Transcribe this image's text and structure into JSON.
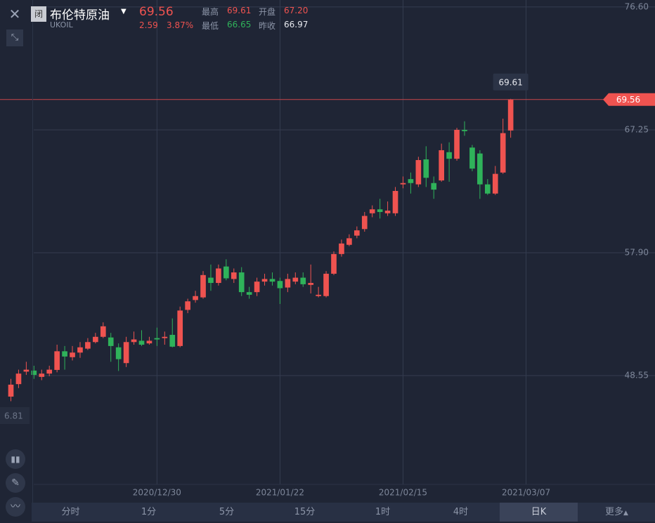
{
  "header": {
    "badge": "闭",
    "name": "布伦特原油",
    "symbol": "UKOIL",
    "price": "69.56",
    "change": "2.59",
    "change_pct": "3.87%",
    "high_label": "最高",
    "high": "69.61",
    "open_label": "开盘",
    "open": "67.20",
    "low_label": "最低",
    "low": "66.65",
    "prev_label": "昨收",
    "prev": "66.97"
  },
  "chart_data": {
    "type": "candlestick",
    "up_color": "#ef5350",
    "down_color": "#2fb25a",
    "grid": true,
    "open": [
      46.95,
      47.9,
      48.85,
      48.93,
      48.45,
      48.7,
      48.98,
      50.4,
      49.95,
      50.3,
      50.6,
      51.1,
      51.5,
      51.45,
      50.7,
      49.5,
      51.1,
      51.2,
      51.0,
      51.4,
      51.4,
      51.65,
      50.8,
      53.55,
      54.3,
      54.5,
      56.0,
      55.6,
      56.85,
      55.9,
      56.4,
      54.9,
      54.9,
      55.7,
      55.9,
      55.75,
      55.25,
      55.7,
      56.0,
      55.45,
      54.6,
      54.6,
      56.3,
      57.8,
      58.5,
      59.2,
      59.7,
      60.9,
      61.2,
      60.9,
      60.9,
      63.1,
      63.5,
      63.1,
      65.0,
      63.2,
      63.4,
      65.55,
      65.05,
      67.25,
      65.9,
      65.45,
      63.1,
      62.4,
      64.0,
      67.2
    ],
    "high": [
      48.3,
      49.0,
      49.6,
      49.3,
      49.0,
      49.3,
      50.9,
      50.8,
      50.8,
      51.1,
      51.4,
      51.8,
      52.6,
      51.8,
      51.0,
      51.5,
      51.9,
      52.0,
      51.5,
      52.2,
      51.9,
      52.9,
      53.8,
      54.4,
      55.0,
      56.5,
      57.0,
      57.0,
      57.4,
      56.7,
      56.8,
      55.3,
      56.0,
      56.3,
      56.4,
      56.0,
      56.3,
      56.4,
      56.4,
      57.0,
      55.3,
      56.5,
      58.0,
      58.9,
      59.3,
      59.9,
      61.0,
      61.5,
      62.0,
      61.8,
      62.9,
      63.7,
      64.0,
      65.2,
      66.0,
      63.7,
      66.2,
      66.3,
      67.4,
      67.9,
      66.1,
      65.7,
      63.5,
      64.5,
      68.1,
      69.61
    ],
    "low": [
      46.6,
      47.6,
      48.6,
      48.3,
      48.2,
      48.5,
      48.8,
      49.0,
      49.7,
      49.9,
      50.5,
      51.0,
      51.4,
      49.6,
      48.9,
      49.2,
      50.9,
      50.8,
      50.9,
      50.8,
      50.9,
      50.7,
      50.7,
      53.3,
      54.1,
      54.4,
      55.0,
      55.4,
      55.8,
      55.6,
      54.6,
      54.4,
      54.6,
      55.4,
      55.4,
      54.0,
      54.9,
      55.5,
      55.3,
      54.8,
      54.5,
      54.5,
      56.2,
      57.6,
      58.4,
      59.0,
      59.5,
      60.6,
      60.5,
      60.7,
      60.7,
      62.8,
      62.4,
      62.9,
      62.9,
      62.0,
      63.3,
      63.3,
      64.9,
      66.8,
      64.1,
      62.0,
      62.3,
      62.3,
      63.9,
      66.65
    ],
    "close": [
      47.86,
      48.7,
      49.0,
      48.6,
      48.7,
      49.0,
      50.4,
      50.0,
      50.3,
      50.7,
      51.1,
      51.5,
      52.3,
      50.8,
      49.8,
      51.1,
      51.3,
      50.9,
      51.2,
      51.3,
      51.5,
      50.75,
      53.5,
      54.2,
      54.6,
      56.2,
      55.6,
      56.7,
      55.95,
      56.4,
      54.9,
      54.7,
      55.7,
      55.9,
      55.7,
      55.2,
      55.9,
      56.0,
      55.5,
      55.6,
      54.7,
      56.3,
      57.8,
      58.6,
      59.0,
      59.6,
      60.7,
      61.2,
      61.0,
      61.1,
      62.6,
      63.2,
      63.2,
      64.95,
      63.6,
      62.7,
      65.7,
      65.05,
      67.25,
      67.15,
      64.3,
      63.1,
      62.4,
      63.9,
      67.0,
      69.56
    ],
    "ylim": [
      40.27,
      77.13
    ],
    "yticks": [
      48.55,
      {
        "value": 57.9,
        "label": "57.90"
      },
      67.25,
      {
        "value": 76.6,
        "label": "76.60"
      }
    ],
    "xlim": [
      -1.417,
      83.77
    ],
    "xticks": [
      {
        "value": 19,
        "label": "2020/12/30"
      },
      {
        "value": 35,
        "label": "2021/01/22"
      },
      {
        "value": 51,
        "label": "2021/02/15"
      },
      {
        "value": 67,
        "label": "2021/03/07"
      }
    ],
    "left_label": "6.81"
  },
  "tabs": [
    "分时",
    "1分",
    "5分",
    "15分",
    "1时",
    "4时",
    "日K",
    "更多"
  ],
  "active_tab": 6
}
